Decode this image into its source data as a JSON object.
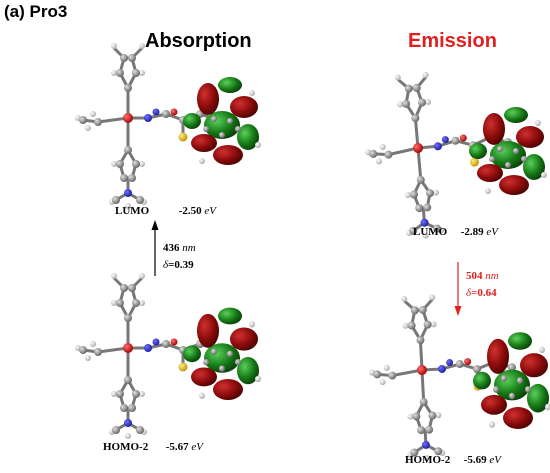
{
  "panel_label": "(a) Pro3",
  "columns": {
    "absorption": {
      "title": "Absorption",
      "title_color": "#000000",
      "lumo": {
        "name": "LUMO",
        "energy": "-2.50",
        "unit": "eV"
      },
      "homo": {
        "name": "HOMO-2",
        "energy": "-5.67",
        "unit": "eV"
      },
      "transition": {
        "wavelength": "436",
        "wl_unit": "nm",
        "delta_symbol": "δ",
        "delta_value": "=0.39",
        "color": "#000000",
        "direction": "up"
      }
    },
    "emission": {
      "title": "Emission",
      "title_color": "#e02020",
      "lumo": {
        "name": "LUMO",
        "energy": "-2.89",
        "unit": "eV"
      },
      "homo": {
        "name": "HOMO-2",
        "energy": "-5.69",
        "unit": "eV"
      },
      "transition": {
        "wavelength": "504",
        "wl_unit": "nm",
        "delta_symbol": "δ",
        "delta_value": "=0.64",
        "color": "#e02020",
        "direction": "down"
      }
    }
  },
  "colors": {
    "lobe_red": "#8b0a0a",
    "lobe_green": "#167a16",
    "carbon": "#8c8c8c",
    "hydrogen": "#e6e6e6",
    "nitrogen": "#2323c8",
    "oxygen": "#d01818",
    "sulfur": "#e8c020",
    "boron": "#f0a0a0"
  },
  "icons": {
    "molecule": "molecular-orbital-icon",
    "arrow_up": "arrow-up-icon",
    "arrow_down": "arrow-down-icon"
  }
}
